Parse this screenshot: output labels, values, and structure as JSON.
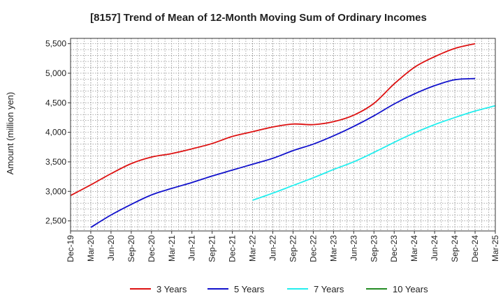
{
  "chart_data": {
    "type": "line",
    "title": "[8157]  Trend of Mean of 12-Month Moving Sum of Ordinary Incomes",
    "xlabel": "",
    "ylabel": "Amount (million yen)",
    "ylim": [
      2330,
      5590
    ],
    "yticks": [
      2500,
      3000,
      3500,
      4000,
      4500,
      5000,
      5500
    ],
    "ytick_labels": [
      "2,500",
      "3,000",
      "3,500",
      "4,000",
      "4,500",
      "5,000",
      "5,500"
    ],
    "xtick_labels": [
      "Dec-19",
      "Mar-20",
      "Jun-20",
      "Sep-20",
      "Dec-20",
      "Mar-21",
      "Jun-21",
      "Sep-21",
      "Dec-21",
      "Mar-22",
      "Jun-22",
      "Sep-22",
      "Dec-22",
      "Mar-23",
      "Jun-23",
      "Sep-23",
      "Dec-23",
      "Mar-24",
      "Jun-24",
      "Sep-24",
      "Dec-24",
      "Mar-25"
    ],
    "grid": true,
    "legend_position": "bottom",
    "series": [
      {
        "name": "3 Years",
        "color": "#dd1111",
        "start_index": 0,
        "values": [
          2930,
          3110,
          3300,
          3470,
          3580,
          3640,
          3720,
          3810,
          3930,
          4010,
          4090,
          4140,
          4130,
          4180,
          4290,
          4490,
          4820,
          5100,
          5280,
          5420,
          5500
        ]
      },
      {
        "name": "5 Years",
        "color": "#1111cc",
        "start_index": 1,
        "values": [
          2390,
          2600,
          2780,
          2940,
          3050,
          3150,
          3260,
          3360,
          3460,
          3560,
          3690,
          3800,
          3940,
          4100,
          4280,
          4480,
          4650,
          4790,
          4890,
          4910
        ]
      },
      {
        "name": "7 Years",
        "color": "#22eeee",
        "start_index": 9,
        "values": [
          2850,
          2970,
          3100,
          3230,
          3370,
          3500,
          3660,
          3830,
          3990,
          4130,
          4250,
          4360,
          4450
        ]
      },
      {
        "name": "10 Years",
        "color": "#228b22",
        "start_index": 0,
        "values": []
      }
    ]
  }
}
